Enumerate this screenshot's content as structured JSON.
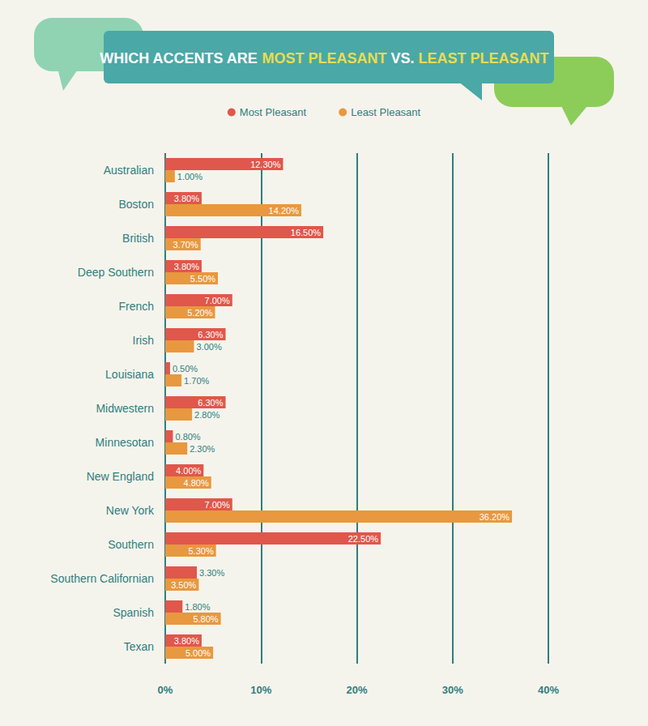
{
  "chart_data": {
    "type": "bar",
    "title": "WHICH ACCENTS ARE MOST PLEASANT VS. LEAST PLEASANT",
    "orientation": "horizontal",
    "categories": [
      "Australian",
      "Boston",
      "British",
      "Deep Southern",
      "French",
      "Irish",
      "Louisiana",
      "Midwestern",
      "Minnesotan",
      "New England",
      "New York",
      "Southern",
      "Southern Californian",
      "Spanish",
      "Texan"
    ],
    "series": [
      {
        "name": "Most Pleasant",
        "color": "#e0574b",
        "values": [
          12.3,
          3.8,
          16.5,
          3.8,
          7.0,
          6.3,
          0.5,
          6.3,
          0.8,
          4.0,
          7.0,
          22.5,
          3.3,
          1.8,
          3.8
        ],
        "value_labels": [
          "12.30%",
          "3.80%",
          "16.50%",
          "3.80%",
          "7.00%",
          "6.30%",
          "0.50%",
          "6.30%",
          "0.80%",
          "4.00%",
          "7.00%",
          "22.50%",
          "3.30%",
          "1.80%",
          "3.80%"
        ]
      },
      {
        "name": "Least Pleasant",
        "color": "#e8983f",
        "values": [
          1.0,
          14.2,
          3.7,
          5.5,
          5.2,
          3.0,
          1.7,
          2.8,
          2.3,
          4.8,
          36.2,
          5.3,
          3.5,
          5.8,
          5.0
        ],
        "value_labels": [
          "1.00%",
          "14.20%",
          "3.70%",
          "5.50%",
          "5.20%",
          "3.00%",
          "1.70%",
          "2.80%",
          "2.30%",
          "4.80%",
          "36.20%",
          "5.30%",
          "3.50%",
          "5.80%",
          "5.00%"
        ]
      }
    ],
    "xlim": [
      0,
      40
    ],
    "xticks": [
      {
        "value": 0,
        "label": "0%"
      },
      {
        "value": 10,
        "label": "10%"
      },
      {
        "value": 20,
        "label": "20%"
      },
      {
        "value": 30,
        "label": "30%"
      },
      {
        "value": 40,
        "label": "40%"
      }
    ],
    "grid": true,
    "legend": "top",
    "data_labels": true
  }
}
